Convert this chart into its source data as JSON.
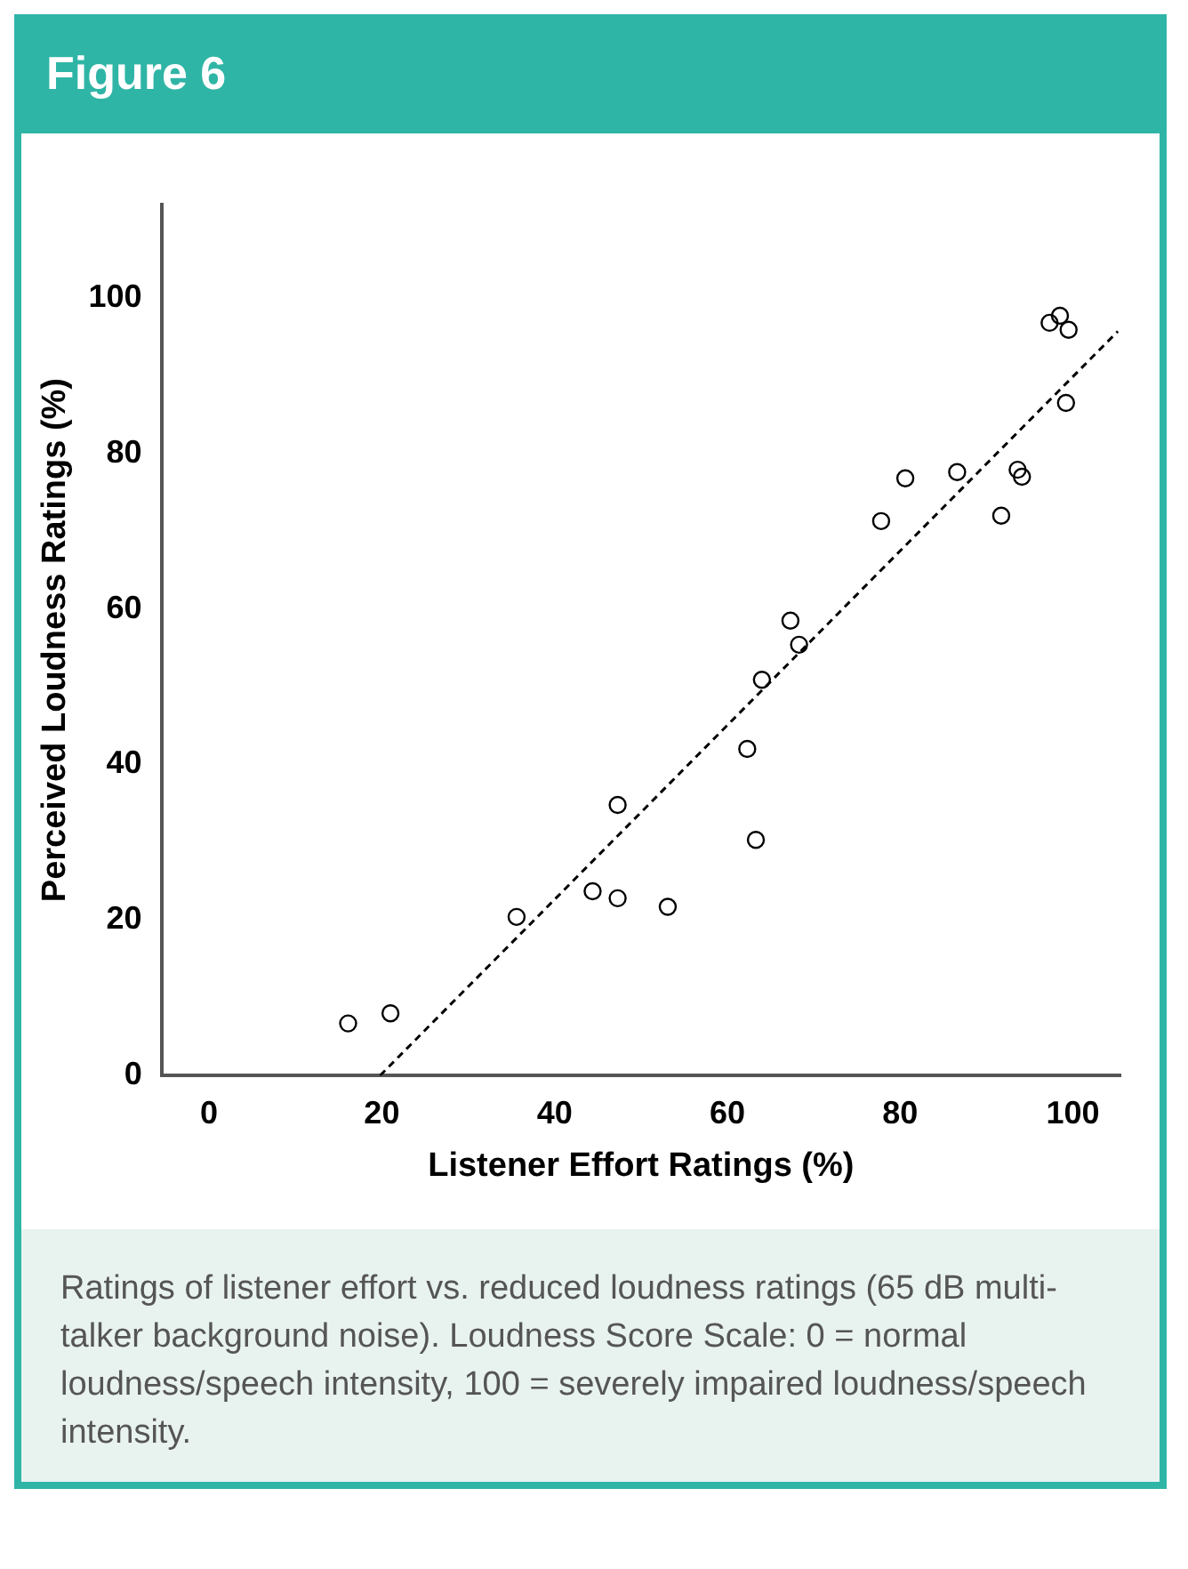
{
  "chart_data": {
    "type": "scatter",
    "title": "Figure 6",
    "xlabel": "Listener Effort Ratings (%)",
    "ylabel": "Perceived Loudness Ratings (%)",
    "annotations": [
      "Ratings of listener effort vs. reduced loudness ratings (65 dB multi-talker background noise). Loudness Score Scale: 0 = normal loudness/speech intensity, 100 = severely impaired loudness/speech intensity."
    ],
    "series": [
      {
        "color": "#000000",
        "marker": "circle",
        "x": [
          16.1,
          21.0,
          35.6,
          44.4,
          47.3,
          47.3,
          53.1,
          62.3,
          63.3,
          64.0,
          67.3,
          68.3,
          77.8,
          80.6,
          86.6,
          91.7,
          93.6,
          94.1,
          99.2,
          97.3,
          98.5,
          99.5
        ],
        "values": [
          6.7,
          8.0,
          20.4,
          23.7,
          22.8,
          34.8,
          21.7,
          42.0,
          30.3,
          50.9,
          58.5,
          55.4,
          71.3,
          76.8,
          77.6,
          72.0,
          77.9,
          77.0,
          86.5,
          96.8,
          97.7,
          95.9
        ]
      },
      {
        "type": "line",
        "color": "#000000",
        "marker": "none",
        "line_style": "dashed",
        "x": [
          19.8,
          105.2
        ],
        "values": [
          0,
          95.7
        ]
      }
    ],
    "xlim": [
      -5.5,
      105.5
    ],
    "ylim": [
      0,
      112
    ],
    "xticks": [
      0,
      20,
      40,
      60,
      80,
      100
    ],
    "yticks": [
      0,
      20,
      40,
      60,
      80,
      100
    ],
    "grid": false,
    "legend": false
  }
}
